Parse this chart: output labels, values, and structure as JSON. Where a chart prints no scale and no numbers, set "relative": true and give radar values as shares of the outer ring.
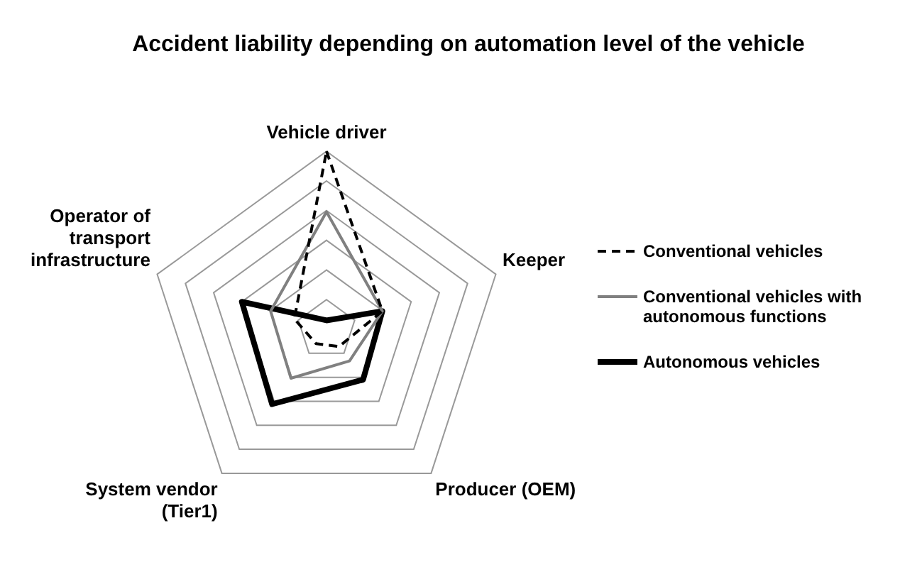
{
  "chart_data": {
    "type": "radar",
    "title": "Accident liability depending on automation level of the vehicle",
    "categories": [
      "Vehicle driver",
      "Keeper",
      "Producer (OEM)",
      "System vendor (Tier1)",
      "Operator of transport infrastructure"
    ],
    "relative": true,
    "legend": "right",
    "grid": true,
    "series": [
      {
        "name": "Conventional vehicles",
        "color": "#000000",
        "line_style": "dashed",
        "values": [
          1.0,
          0.33,
          0.12,
          0.1,
          0.19
        ]
      },
      {
        "name": "Conventional vehicles with autonomous functions",
        "color": "#808080",
        "line_style": "solid",
        "values": [
          0.66,
          0.33,
          0.22,
          0.34,
          0.33
        ]
      },
      {
        "name": "Autonomous vehicles",
        "color": "#000000",
        "line_style": "solid",
        "values": [
          0.05,
          0.33,
          0.35,
          0.52,
          0.5
        ]
      }
    ]
  }
}
